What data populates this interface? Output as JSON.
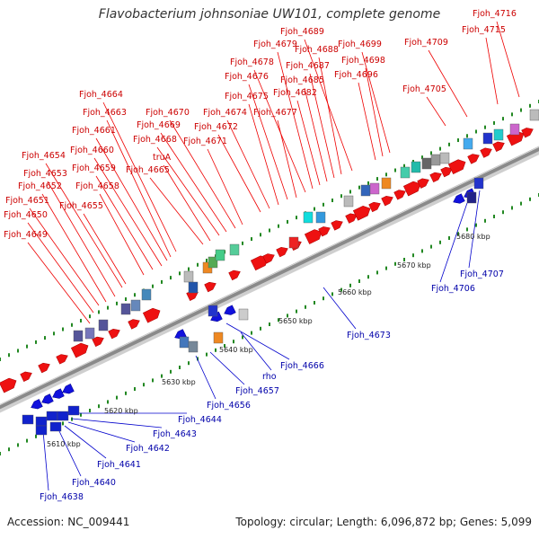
{
  "title": "Flavobacterium johnsoniae UW101, complete genome",
  "footer": {
    "accession": "Accession: NC_009441",
    "summary": "Topology: circular; Length: 6,096,872 bp; Genes: 5,099"
  },
  "colors": {
    "forward": "#ee1111",
    "reverse": "#1111dd",
    "line_forward": "#ee0000",
    "line_reverse": "#0000cc",
    "backbone": "#999999",
    "tick": "#228822"
  },
  "scale_labels": [
    "5610 kbp",
    "5620 kbp",
    "5630 kbp",
    "5640 kbp",
    "5650 kbp",
    "5660 kbp",
    "5670 kbp",
    "5680 kbp"
  ],
  "forward_labels": [
    "Fjoh_4649",
    "Fjoh_4650",
    "Fjoh_4651",
    "Fjoh_4652",
    "Fjoh_4653",
    "Fjoh_4654",
    "Fjoh_4655",
    "Fjoh_4658",
    "Fjoh_4659",
    "Fjoh_4660",
    "Fjoh_4661",
    "Fjoh_4663",
    "Fjoh_4664",
    "Fjoh_4665",
    "truA",
    "Fjoh_4668",
    "Fjoh_4669",
    "Fjoh_4670",
    "Fjoh_4671",
    "Fjoh_4672",
    "Fjoh_4674",
    "Fjoh_4675",
    "Fjoh_4676",
    "Fjoh_4677",
    "Fjoh_4678",
    "Fjoh_4679",
    "Fjoh_4682",
    "Fjoh_4685",
    "Fjoh_4687",
    "Fjoh_4688",
    "Fjoh_4689",
    "Fjoh_4696",
    "Fjoh_4698",
    "Fjoh_4699",
    "Fjoh_4705",
    "Fjoh_4709",
    "Fjoh_4715",
    "Fjoh_4716"
  ],
  "reverse_labels": [
    "Fjoh_4638",
    "Fjoh_4640",
    "Fjoh_4641",
    "Fjoh_4642",
    "Fjoh_4643",
    "Fjoh_4644",
    "Fjoh_4656",
    "Fjoh_4657",
    "rho",
    "Fjoh_4666",
    "Fjoh_4673",
    "Fjoh_4706",
    "Fjoh_4707"
  ]
}
